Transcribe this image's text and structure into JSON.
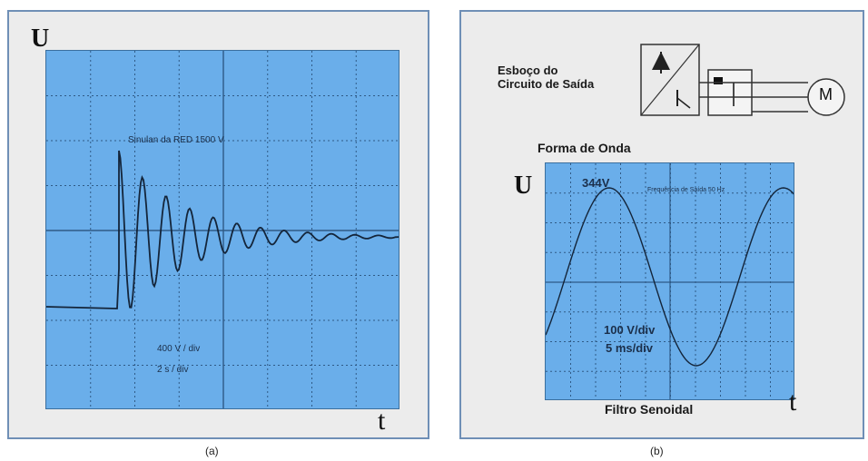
{
  "panel_a": {
    "y_label": "U",
    "x_label": "t",
    "annotation_top": "Sinulan da RED   1500 V",
    "annotation_div": "400 V / div",
    "annotation_time": "2 s / div",
    "caption": "(a)"
  },
  "panel_b": {
    "circuit_title": "Esboço do\nCircuito de Saída",
    "motor_label": "M",
    "waveform_title": "Forma de Onda",
    "y_label": "U",
    "x_label": "t",
    "peak_label": "344V",
    "frequency_label": "Frequência de Saída 50 Hz",
    "voltage_div": "100 V/div",
    "time_div": "5 ms/div",
    "filter_label": "Filtro Senoidal",
    "caption": "(b)"
  },
  "colors": {
    "scope_bg": "#6aaeea",
    "panel_bg": "#ececec",
    "panel_border": "#6f8fb6",
    "grid": "#2f5a86",
    "trace": "#14253a"
  }
}
